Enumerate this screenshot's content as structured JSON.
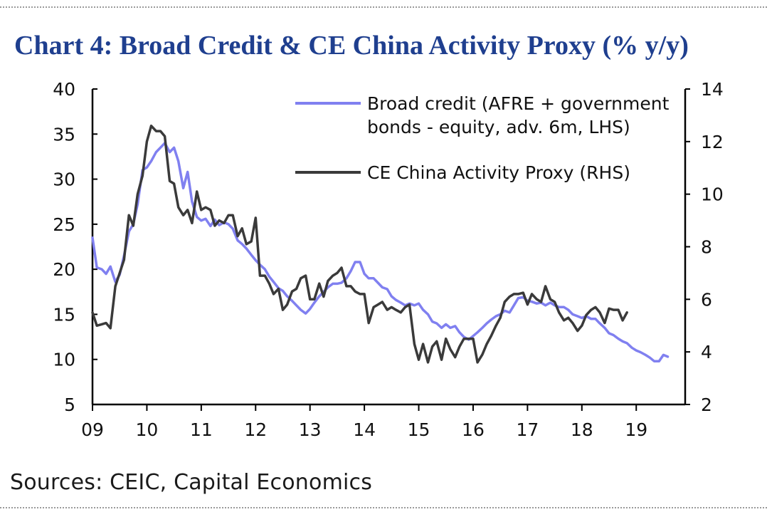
{
  "title": "Chart 4: Broad Credit & CE China Activity Proxy (% y/y)",
  "source": "Sources: CEIC, Capital Economics",
  "colors": {
    "title": "#1f3f8f",
    "credit_line": "#8080f0",
    "activity_line": "#3a3a3a",
    "axis": "#000000"
  },
  "chart_data": {
    "type": "line",
    "title": "Chart 4: Broad Credit & CE China Activity Proxy (% y/y)",
    "x_range": [
      2009,
      2019.9
    ],
    "x_ticks": [
      2009,
      2010,
      2011,
      2012,
      2013,
      2014,
      2015,
      2016,
      2017,
      2018,
      2019
    ],
    "x_tick_labels": [
      "09",
      "10",
      "11",
      "12",
      "13",
      "14",
      "15",
      "16",
      "17",
      "18",
      "19"
    ],
    "y_left": {
      "range": [
        5,
        40
      ],
      "ticks": [
        5,
        10,
        15,
        20,
        25,
        30,
        35,
        40
      ],
      "labels": [
        "5",
        "10",
        "15",
        "20",
        "25",
        "30",
        "35",
        "40"
      ]
    },
    "y_right": {
      "range": [
        2,
        14
      ],
      "ticks": [
        2,
        4,
        6,
        8,
        10,
        12,
        14
      ],
      "labels": [
        "2",
        "4",
        "6",
        "8",
        "10",
        "12",
        "14"
      ]
    },
    "grid": false,
    "legend_position": "top-right",
    "series": [
      {
        "name": "Broad credit (AFRE + government bonds - equity, adv. 6m, LHS)",
        "legend_lines": [
          "Broad credit (AFRE + government",
          "bonds - equity, adv. 6m, LHS)"
        ],
        "axis": "left",
        "points": [
          [
            2009.0,
            23.5
          ],
          [
            2009.08,
            20.2
          ],
          [
            2009.17,
            20.0
          ],
          [
            2009.25,
            19.5
          ],
          [
            2009.33,
            20.3
          ],
          [
            2009.42,
            18.6
          ],
          [
            2009.5,
            19.4
          ],
          [
            2009.58,
            21.5
          ],
          [
            2009.67,
            24.2
          ],
          [
            2009.75,
            25.0
          ],
          [
            2009.83,
            27.2
          ],
          [
            2009.92,
            31.0
          ],
          [
            2010.0,
            31.3
          ],
          [
            2010.08,
            32.0
          ],
          [
            2010.17,
            33.0
          ],
          [
            2010.25,
            33.5
          ],
          [
            2010.33,
            34.0
          ],
          [
            2010.42,
            33.0
          ],
          [
            2010.5,
            33.5
          ],
          [
            2010.58,
            32.0
          ],
          [
            2010.67,
            29.0
          ],
          [
            2010.75,
            30.8
          ],
          [
            2010.83,
            27.5
          ],
          [
            2010.92,
            25.8
          ],
          [
            2011.0,
            25.4
          ],
          [
            2011.08,
            25.6
          ],
          [
            2011.17,
            24.8
          ],
          [
            2011.25,
            25.5
          ],
          [
            2011.33,
            24.9
          ],
          [
            2011.42,
            25.2
          ],
          [
            2011.5,
            25.0
          ],
          [
            2011.58,
            24.5
          ],
          [
            2011.67,
            23.2
          ],
          [
            2011.75,
            22.8
          ],
          [
            2011.83,
            22.3
          ],
          [
            2011.92,
            21.6
          ],
          [
            2012.0,
            21.0
          ],
          [
            2012.08,
            20.5
          ],
          [
            2012.17,
            20.0
          ],
          [
            2012.25,
            19.2
          ],
          [
            2012.33,
            18.6
          ],
          [
            2012.42,
            17.9
          ],
          [
            2012.5,
            17.6
          ],
          [
            2012.58,
            17.0
          ],
          [
            2012.67,
            16.5
          ],
          [
            2012.75,
            16.0
          ],
          [
            2012.83,
            15.5
          ],
          [
            2012.92,
            15.1
          ],
          [
            2013.0,
            15.6
          ],
          [
            2013.08,
            16.3
          ],
          [
            2013.17,
            17.0
          ],
          [
            2013.25,
            17.5
          ],
          [
            2013.33,
            18.0
          ],
          [
            2013.42,
            18.4
          ],
          [
            2013.5,
            18.4
          ],
          [
            2013.58,
            18.5
          ],
          [
            2013.67,
            19.0
          ],
          [
            2013.75,
            19.8
          ],
          [
            2013.83,
            20.8
          ],
          [
            2013.92,
            20.8
          ],
          [
            2014.0,
            19.5
          ],
          [
            2014.08,
            19.0
          ],
          [
            2014.17,
            19.0
          ],
          [
            2014.25,
            18.5
          ],
          [
            2014.33,
            18.0
          ],
          [
            2014.42,
            17.8
          ],
          [
            2014.5,
            17.0
          ],
          [
            2014.58,
            16.6
          ],
          [
            2014.67,
            16.3
          ],
          [
            2014.75,
            16.0
          ],
          [
            2014.83,
            16.2
          ],
          [
            2014.92,
            16.0
          ],
          [
            2015.0,
            16.2
          ],
          [
            2015.08,
            15.5
          ],
          [
            2015.17,
            15.0
          ],
          [
            2015.25,
            14.2
          ],
          [
            2015.33,
            14.0
          ],
          [
            2015.42,
            13.5
          ],
          [
            2015.5,
            13.9
          ],
          [
            2015.58,
            13.5
          ],
          [
            2015.67,
            13.7
          ],
          [
            2015.75,
            13.0
          ],
          [
            2015.83,
            12.5
          ],
          [
            2015.92,
            12.2
          ],
          [
            2016.0,
            12.6
          ],
          [
            2016.08,
            13.0
          ],
          [
            2016.17,
            13.5
          ],
          [
            2016.25,
            14.0
          ],
          [
            2016.33,
            14.4
          ],
          [
            2016.42,
            14.8
          ],
          [
            2016.5,
            15.0
          ],
          [
            2016.58,
            15.4
          ],
          [
            2016.67,
            15.2
          ],
          [
            2016.75,
            16.0
          ],
          [
            2016.83,
            16.8
          ],
          [
            2016.92,
            16.9
          ],
          [
            2017.0,
            16.5
          ],
          [
            2017.08,
            16.4
          ],
          [
            2017.17,
            16.2
          ],
          [
            2017.25,
            16.3
          ],
          [
            2017.33,
            16.0
          ],
          [
            2017.42,
            16.3
          ],
          [
            2017.5,
            16.0
          ],
          [
            2017.58,
            15.8
          ],
          [
            2017.67,
            15.8
          ],
          [
            2017.75,
            15.5
          ],
          [
            2017.83,
            15.0
          ],
          [
            2017.92,
            14.8
          ],
          [
            2018.0,
            14.6
          ],
          [
            2018.08,
            14.8
          ],
          [
            2018.17,
            14.5
          ],
          [
            2018.25,
            14.5
          ],
          [
            2018.33,
            14.0
          ],
          [
            2018.42,
            13.5
          ],
          [
            2018.5,
            12.9
          ],
          [
            2018.58,
            12.7
          ],
          [
            2018.67,
            12.3
          ],
          [
            2018.75,
            12.0
          ],
          [
            2018.83,
            11.8
          ],
          [
            2018.92,
            11.3
          ],
          [
            2019.0,
            11.0
          ],
          [
            2019.08,
            10.8
          ],
          [
            2019.17,
            10.5
          ],
          [
            2019.25,
            10.2
          ],
          [
            2019.33,
            9.8
          ],
          [
            2019.42,
            9.8
          ],
          [
            2019.5,
            10.5
          ],
          [
            2019.58,
            10.3
          ]
        ]
      },
      {
        "name": "CE China Activity Proxy (RHS)",
        "legend_lines": [
          "CE China Activity Proxy (RHS)"
        ],
        "axis": "right",
        "points": [
          [
            2009.0,
            5.5
          ],
          [
            2009.08,
            5.0
          ],
          [
            2009.17,
            5.05
          ],
          [
            2009.25,
            5.1
          ],
          [
            2009.33,
            4.9
          ],
          [
            2009.42,
            6.5
          ],
          [
            2009.5,
            7.0
          ],
          [
            2009.58,
            7.5
          ],
          [
            2009.67,
            9.2
          ],
          [
            2009.75,
            8.8
          ],
          [
            2009.83,
            10.0
          ],
          [
            2009.92,
            10.7
          ],
          [
            2010.0,
            12.0
          ],
          [
            2010.08,
            12.6
          ],
          [
            2010.17,
            12.4
          ],
          [
            2010.25,
            12.4
          ],
          [
            2010.33,
            12.2
          ],
          [
            2010.42,
            10.5
          ],
          [
            2010.5,
            10.4
          ],
          [
            2010.58,
            9.5
          ],
          [
            2010.67,
            9.2
          ],
          [
            2010.75,
            9.4
          ],
          [
            2010.83,
            8.9
          ],
          [
            2010.92,
            10.1
          ],
          [
            2011.0,
            9.4
          ],
          [
            2011.08,
            9.5
          ],
          [
            2011.17,
            9.4
          ],
          [
            2011.25,
            8.8
          ],
          [
            2011.33,
            9.0
          ],
          [
            2011.42,
            8.9
          ],
          [
            2011.5,
            9.2
          ],
          [
            2011.58,
            9.2
          ],
          [
            2011.67,
            8.4
          ],
          [
            2011.75,
            8.7
          ],
          [
            2011.83,
            8.1
          ],
          [
            2011.92,
            8.2
          ],
          [
            2012.0,
            9.1
          ],
          [
            2012.08,
            6.9
          ],
          [
            2012.17,
            6.9
          ],
          [
            2012.25,
            6.6
          ],
          [
            2012.33,
            6.2
          ],
          [
            2012.42,
            6.4
          ],
          [
            2012.5,
            5.6
          ],
          [
            2012.58,
            5.8
          ],
          [
            2012.67,
            6.3
          ],
          [
            2012.75,
            6.4
          ],
          [
            2012.83,
            6.8
          ],
          [
            2012.92,
            6.9
          ],
          [
            2013.0,
            6.0
          ],
          [
            2013.08,
            6.0
          ],
          [
            2013.17,
            6.6
          ],
          [
            2013.25,
            6.1
          ],
          [
            2013.33,
            6.7
          ],
          [
            2013.42,
            6.9
          ],
          [
            2013.5,
            7.0
          ],
          [
            2013.58,
            7.2
          ],
          [
            2013.67,
            6.5
          ],
          [
            2013.75,
            6.5
          ],
          [
            2013.83,
            6.3
          ],
          [
            2013.92,
            6.2
          ],
          [
            2014.0,
            6.2
          ],
          [
            2014.08,
            5.1
          ],
          [
            2014.17,
            5.7
          ],
          [
            2014.25,
            5.8
          ],
          [
            2014.33,
            5.9
          ],
          [
            2014.42,
            5.6
          ],
          [
            2014.5,
            5.7
          ],
          [
            2014.58,
            5.6
          ],
          [
            2014.67,
            5.5
          ],
          [
            2014.75,
            5.7
          ],
          [
            2014.83,
            5.8
          ],
          [
            2014.92,
            4.3
          ],
          [
            2015.0,
            3.7
          ],
          [
            2015.08,
            4.3
          ],
          [
            2015.17,
            3.6
          ],
          [
            2015.25,
            4.2
          ],
          [
            2015.33,
            4.4
          ],
          [
            2015.42,
            3.7
          ],
          [
            2015.5,
            4.5
          ],
          [
            2015.58,
            4.1
          ],
          [
            2015.67,
            3.8
          ],
          [
            2015.75,
            4.2
          ],
          [
            2015.83,
            4.5
          ],
          [
            2015.92,
            4.5
          ],
          [
            2016.0,
            4.5
          ],
          [
            2016.08,
            3.6
          ],
          [
            2016.17,
            3.9
          ],
          [
            2016.25,
            4.3
          ],
          [
            2016.33,
            4.6
          ],
          [
            2016.42,
            5.0
          ],
          [
            2016.5,
            5.3
          ],
          [
            2016.58,
            5.9
          ],
          [
            2016.67,
            6.1
          ],
          [
            2016.75,
            6.2
          ],
          [
            2016.83,
            6.2
          ],
          [
            2016.92,
            6.25
          ],
          [
            2017.0,
            5.8
          ],
          [
            2017.08,
            6.2
          ],
          [
            2017.17,
            6.0
          ],
          [
            2017.25,
            5.9
          ],
          [
            2017.33,
            6.5
          ],
          [
            2017.42,
            6.0
          ],
          [
            2017.5,
            5.9
          ],
          [
            2017.58,
            5.5
          ],
          [
            2017.67,
            5.2
          ],
          [
            2017.75,
            5.3
          ],
          [
            2017.83,
            5.1
          ],
          [
            2017.92,
            4.8
          ],
          [
            2018.0,
            5.0
          ],
          [
            2018.08,
            5.4
          ],
          [
            2018.17,
            5.6
          ],
          [
            2018.25,
            5.7
          ],
          [
            2018.33,
            5.5
          ],
          [
            2018.42,
            5.1
          ],
          [
            2018.5,
            5.65
          ],
          [
            2018.58,
            5.6
          ],
          [
            2018.67,
            5.6
          ],
          [
            2018.75,
            5.2
          ],
          [
            2018.83,
            5.5
          ]
        ]
      }
    ]
  }
}
